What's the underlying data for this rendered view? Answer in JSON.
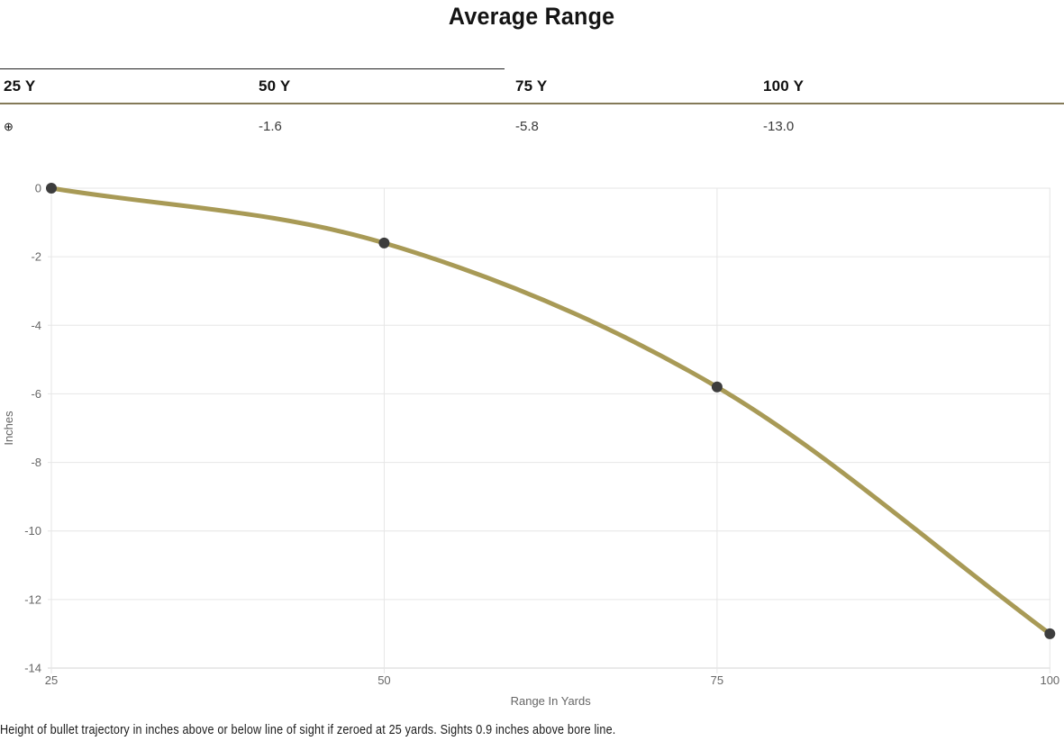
{
  "title": "Average Range",
  "summary_table": {
    "columns": [
      {
        "label": "25 Y",
        "value": "⊕"
      },
      {
        "label": "50 Y",
        "value": "-1.6"
      },
      {
        "label": "75 Y",
        "value": "-5.8"
      },
      {
        "label": "100 Y",
        "value": "-13.0"
      }
    ]
  },
  "chart_data": {
    "type": "line",
    "title": "Average Range",
    "x": [
      25,
      50,
      75,
      100
    ],
    "series": [
      {
        "name": "Average Range",
        "values": [
          0,
          -1.6,
          -5.8,
          -13.0
        ]
      }
    ],
    "xlabel": "Range In Yards",
    "ylabel": "Inches",
    "xticks": [
      25,
      50,
      75,
      100
    ],
    "yticks": [
      0,
      -2,
      -4,
      -6,
      -8,
      -10,
      -12,
      -14
    ],
    "xlim": [
      25,
      100
    ],
    "ylim": [
      -14,
      0
    ],
    "grid": true,
    "legend": "none",
    "line_color": "#a89a56",
    "marker_color": "#3d3d3d",
    "grid_color": "#e6e6e6",
    "axis_line_color": "#d4d4d4",
    "axis_label_color": "#666666"
  },
  "caption": "Height of bullet trajectory in inches above or below line of sight if zeroed at 25 yards. Sights 0.9 inches above bore line."
}
